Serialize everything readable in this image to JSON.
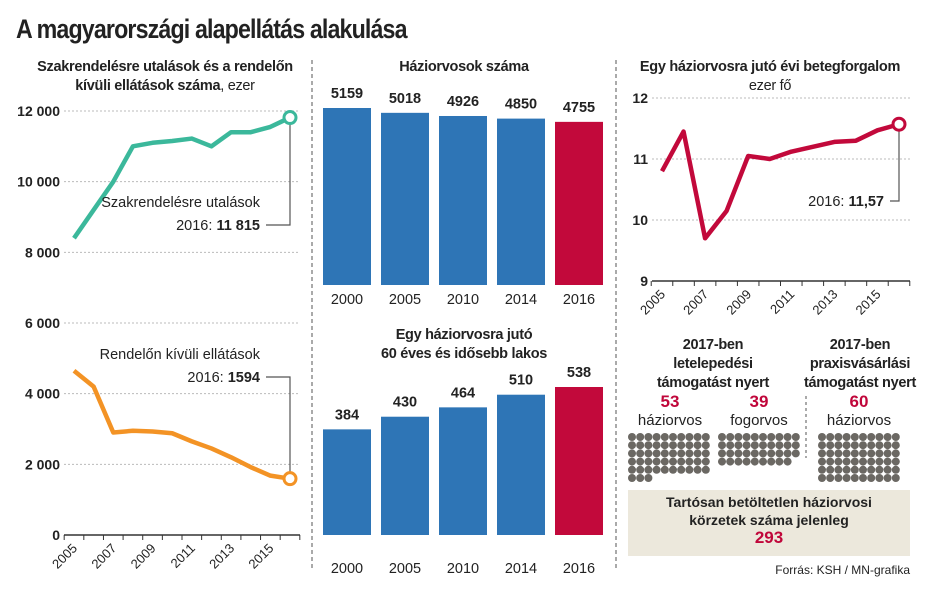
{
  "title": "A magyarországi alapellátás alakulása",
  "left_chart_title": [
    "Szakrendelésre utalások és a rendelőn",
    "kívüli ellátások száma",
    ", ezer"
  ],
  "top_bar_title": "Háziorvosok száma",
  "bottom_bar_title": [
    "Egy háziorvosra jutó",
    "60 éves és idősebb lakos"
  ],
  "right_chart_title": "Egy háziorvosra jutó évi betegforgalom",
  "right_chart_subtitle": "ezer fő",
  "colors": {
    "teal": "#3bb89b",
    "orange": "#f39325",
    "blue": "#2e75b6",
    "red": "#c2093b",
    "dot": "#6b6863"
  },
  "chart_data": [
    {
      "type": "line",
      "title": "Szakrendelésre utalások és a rendelőn kívüli ellátások száma, ezer",
      "x": [
        2005,
        2006,
        2007,
        2008,
        2009,
        2010,
        2011,
        2012,
        2013,
        2014,
        2015,
        2016
      ],
      "xticks": [
        "2005",
        "2007",
        "2009",
        "2011",
        "2013",
        "2015"
      ],
      "yticks": [
        "0",
        "2 000",
        "4 000",
        "6 000",
        "8 000",
        "10 000",
        "12 000"
      ],
      "ylim": [
        0,
        12000
      ],
      "series": [
        {
          "name": "Szakrendelésre utalások",
          "values": [
            8400,
            9200,
            10000,
            11000,
            11100,
            11150,
            11220,
            11000,
            11400,
            11400,
            11550,
            11815
          ],
          "annotation_prefix": "2016: ",
          "annotation_value": "11 815"
        },
        {
          "name": "Rendelőn kívüli ellátások",
          "values": [
            4650,
            4200,
            2900,
            2950,
            2930,
            2880,
            2650,
            2450,
            2200,
            1920,
            1680,
            1594
          ],
          "annotation_prefix": "2016: ",
          "annotation_value": "1594"
        }
      ]
    },
    {
      "type": "bar",
      "title": "Háziorvosok száma",
      "categories": [
        "2000",
        "2005",
        "2010",
        "2014",
        "2016"
      ],
      "values": [
        5159,
        5018,
        4926,
        4850,
        4755
      ],
      "labels": [
        "5159",
        "5018",
        "4926",
        "4850",
        "4755"
      ]
    },
    {
      "type": "bar",
      "title": "Egy háziorvosra jutó 60 éves és idősebb lakos",
      "categories": [
        "2000",
        "2005",
        "2010",
        "2014",
        "2016"
      ],
      "values": [
        384,
        430,
        464,
        510,
        538
      ],
      "labels": [
        "384",
        "430",
        "464",
        "510",
        "538"
      ]
    },
    {
      "type": "line",
      "title": "Egy háziorvosra jutó évi betegforgalom",
      "ylabel": "ezer fő",
      "x": [
        2005,
        2006,
        2007,
        2008,
        2009,
        2010,
        2011,
        2012,
        2013,
        2014,
        2015,
        2016
      ],
      "xticks": [
        "2005",
        "2007",
        "2009",
        "2011",
        "2013",
        "2015"
      ],
      "yticks": [
        "9",
        "10",
        "11",
        "12"
      ],
      "ylim": [
        9,
        12
      ],
      "series": [
        {
          "name": "Betegforgalom",
          "values": [
            10.8,
            11.45,
            9.7,
            10.15,
            11.05,
            11.0,
            11.12,
            11.2,
            11.28,
            11.3,
            11.47,
            11.57
          ],
          "annotation_prefix": "2016: ",
          "annotation_value": "11,57"
        }
      ]
    }
  ],
  "grants": {
    "settle_title": [
      "2017-ben",
      "letelepedési",
      "támogatást nyert"
    ],
    "buy_title": [
      "2017-ben",
      "praxisvásárlási",
      "támogatást nyert"
    ],
    "groups": [
      {
        "count": 53,
        "count_label": "53",
        "label": "háziorvos"
      },
      {
        "count": 39,
        "count_label": "39",
        "label": "fogorvos"
      },
      {
        "count": 60,
        "count_label": "60",
        "label": "háziorvos"
      }
    ]
  },
  "vacant": {
    "line1": "Tartósan betöltetlen háziorvosi",
    "line2": "körzetek száma jelenleg",
    "value": "293"
  },
  "source": "Forrás: KSH / MN-grafika"
}
